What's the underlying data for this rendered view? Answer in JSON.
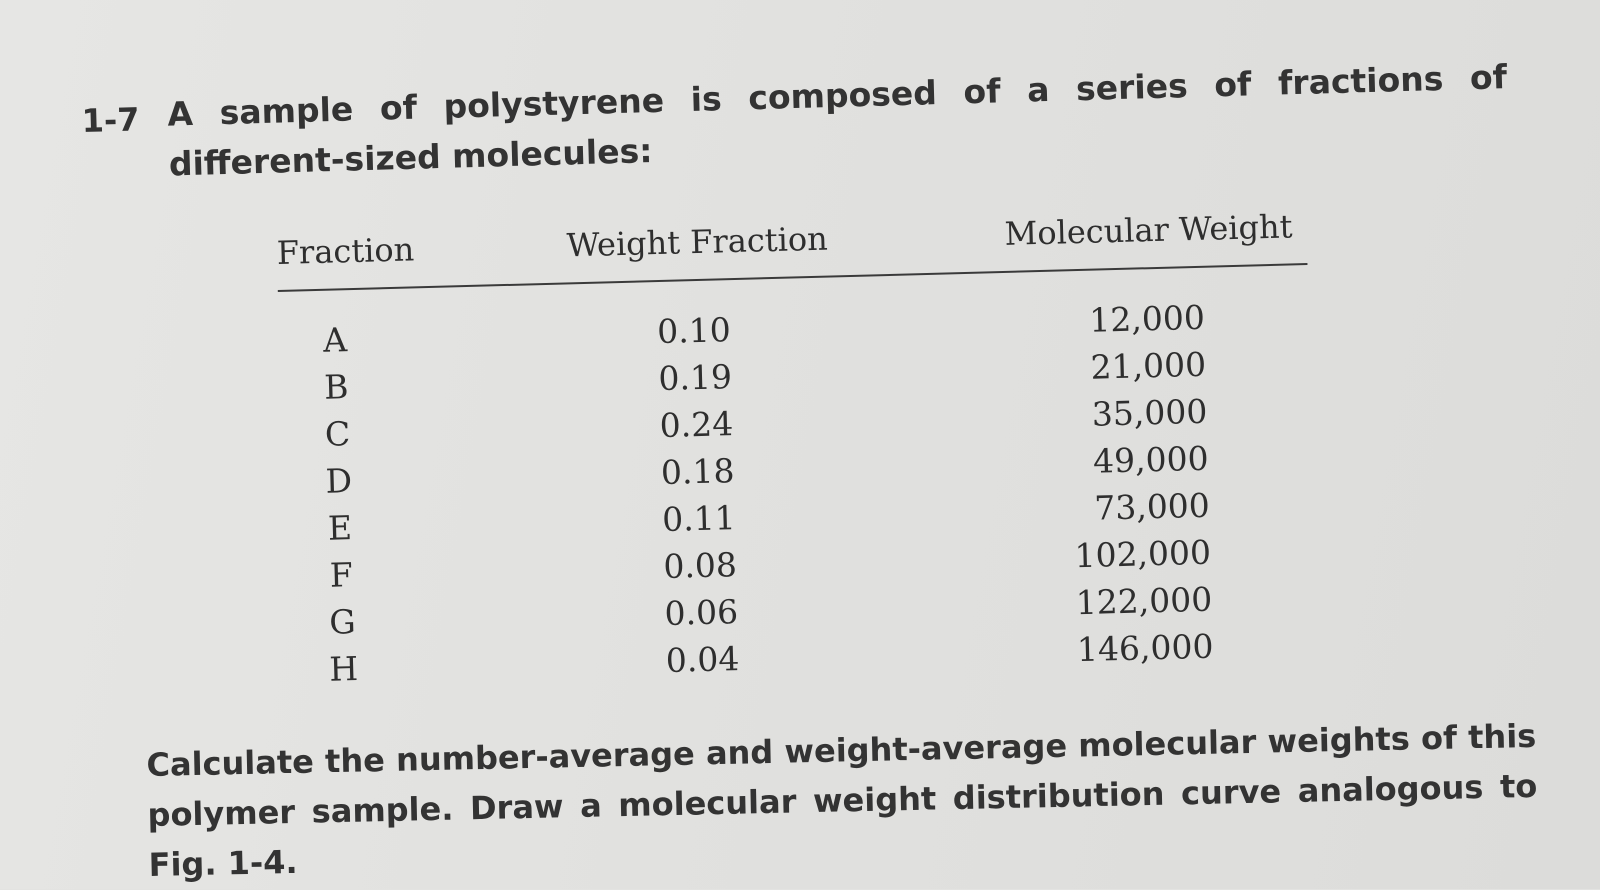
{
  "problem": {
    "number": "1-7",
    "text": "A sample of polystyrene is composed of a series of fractions of different-sized molecules:"
  },
  "table": {
    "headers": {
      "fraction": "Fraction",
      "weight_fraction": "Weight Fraction",
      "molecular_weight": "Molecular Weight"
    },
    "rows": [
      {
        "fraction": "A",
        "weight_fraction": "0.10",
        "molecular_weight": "12,000"
      },
      {
        "fraction": "B",
        "weight_fraction": "0.19",
        "molecular_weight": "21,000"
      },
      {
        "fraction": "C",
        "weight_fraction": "0.24",
        "molecular_weight": "35,000"
      },
      {
        "fraction": "D",
        "weight_fraction": "0.18",
        "molecular_weight": "49,000"
      },
      {
        "fraction": "E",
        "weight_fraction": "0.11",
        "molecular_weight": "73,000"
      },
      {
        "fraction": "F",
        "weight_fraction": "0.08",
        "molecular_weight": "102,000"
      },
      {
        "fraction": "G",
        "weight_fraction": "0.06",
        "molecular_weight": "122,000"
      },
      {
        "fraction": "H",
        "weight_fraction": "0.04",
        "molecular_weight": "146,000"
      }
    ]
  },
  "question": {
    "text": "Calculate the number-average and weight-average molecular weights of this polymer sample. Draw a molecular weight distribution curve analogous to Fig. 1-4."
  }
}
